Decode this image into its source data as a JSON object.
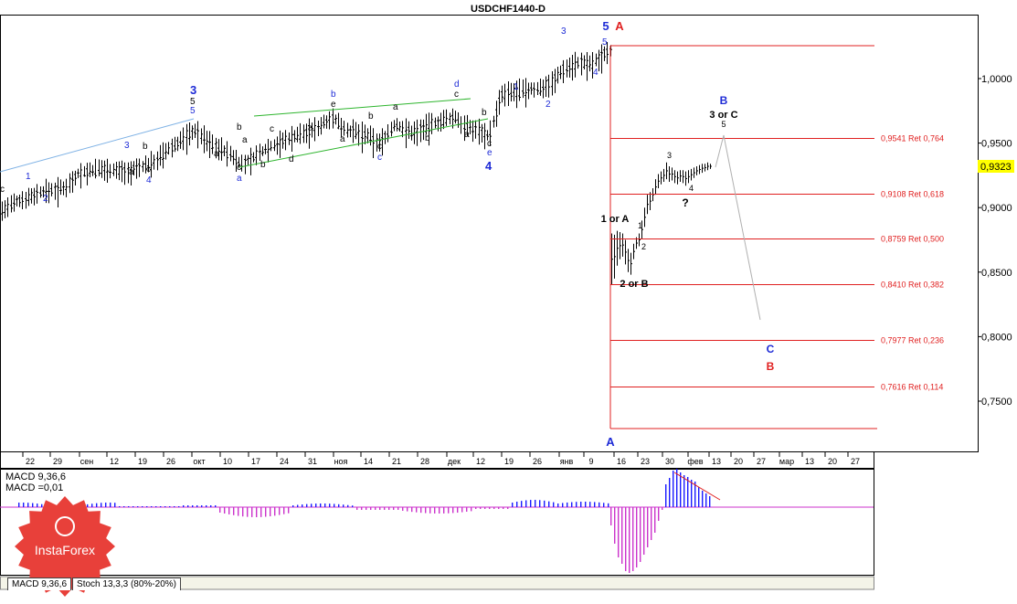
{
  "title": "USDCHF1440-D",
  "current_price_label": "0,9323",
  "price_axis_labels": [
    "1,0000",
    "0,9500",
    "0,9000",
    "0,8500",
    "0,8000",
    "0,7500"
  ],
  "time_axis_labels": [
    "22",
    "29",
    "сен",
    "12",
    "19",
    "26",
    "окт",
    "10",
    "17",
    "24",
    "31",
    "ноя",
    "14",
    "21",
    "28",
    "дек",
    "12",
    "19",
    "26",
    "янв",
    "9",
    "16",
    "23",
    "30",
    "фев",
    "13",
    "20",
    "27",
    "мар",
    "13",
    "20",
    "27"
  ],
  "macd_label": "MACD 9,36,6",
  "macd_value_label": "MACD =0,01",
  "tabs": [
    "MACD 9,36,6",
    "Stoch 13,3,3 (80%-20%)"
  ],
  "logo_text": "InstaForex",
  "colors": {
    "red": "#e02020",
    "blue": "#1e2bd6",
    "green": "#2eb52e",
    "macd_bar": "#1a1aff",
    "macd_neg": "#cc33cc"
  },
  "fib_levels": [
    {
      "label": "0,9541 Ret 0,764",
      "price": 0.9541
    },
    {
      "label": "0,9108 Ret 0,618",
      "price": 0.9108
    },
    {
      "label": "0,8759 Ret 0,500",
      "price": 0.8759
    },
    {
      "label": "0,8410 Ret 0,382",
      "price": 0.841
    },
    {
      "label": "0,7977 Ret 0,236",
      "price": 0.7977
    },
    {
      "label": "0,7616 Ret 0,114",
      "price": 0.7616
    }
  ],
  "wave_labels": {
    "big5": "5",
    "bigA_top": "A",
    "bigA_bottom": "A",
    "bigB": "B",
    "bigC": "C",
    "bigB_red": "B",
    "three_or_c": "3 or C",
    "five": "5",
    "one_or_a": "1 or A",
    "two_or_b": "2 or B",
    "question": "?",
    "n1": "1",
    "n2": "2",
    "n3": "3",
    "n4": "4",
    "a": "a",
    "b": "b",
    "c": "c",
    "d": "d",
    "e": "e"
  }
}
